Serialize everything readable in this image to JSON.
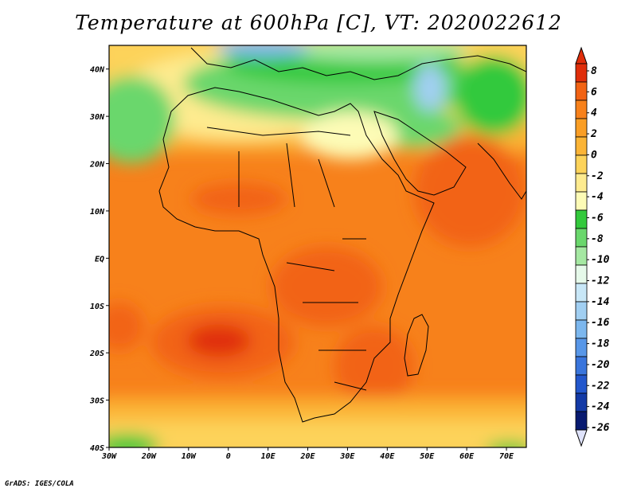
{
  "title": "Temperature at 600hPa [C], VT: 2020022612",
  "credit": "GrADS: IGES/COLA",
  "map": {
    "lon_range": [
      -30,
      75
    ],
    "lat_range": [
      -40,
      45
    ],
    "x_ticks": [
      "30W",
      "20W",
      "10W",
      "0",
      "10E",
      "20E",
      "30E",
      "40E",
      "50E",
      "60E",
      "70E"
    ],
    "y_ticks": [
      "40N",
      "30N",
      "20N",
      "10N",
      "EQ",
      "10S",
      "20S",
      "30S",
      "40S"
    ],
    "region": "Africa and surrounding oceans",
    "field_pattern": {
      "warm_max_near": {
        "lon": -4,
        "lat": -18,
        "value_c": 6
      },
      "warm_zones": [
        "South Atlantic",
        "southern Africa",
        "Arabian Sea"
      ],
      "cool_zones": [
        "Mediterranean",
        "North Africa",
        "Middle East",
        "Southern Ocean edge"
      ]
    }
  },
  "colorbar": {
    "labels": [
      "8",
      "6",
      "4",
      "2",
      "0",
      "-2",
      "-4",
      "-6",
      "-8",
      "-10",
      "-12",
      "-14",
      "-16",
      "-18",
      "-20",
      "-22",
      "-24",
      "-26"
    ],
    "colors_top_to_bottom": [
      "#e02e0b",
      "#f26314",
      "#f7811b",
      "#fa9e25",
      "#fbb436",
      "#fdd35a",
      "#feeb8f",
      "#fdfbb6",
      "#33c93c",
      "#6ad76c",
      "#a5e8a2",
      "#e6f9ea",
      "#c8e7f7",
      "#a1cff2",
      "#7cb7ee",
      "#5897e8",
      "#3a75dc",
      "#2357cc",
      "#133aa6",
      "#081a70"
    ],
    "over_color": "#e02e0b",
    "under_color": "#dfe3fb"
  }
}
